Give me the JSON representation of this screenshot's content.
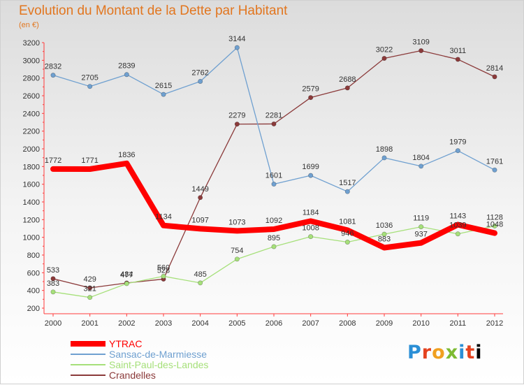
{
  "title": "Evolution du Montant de la Dette par Habitant",
  "subtitle": "(en €)",
  "logo": [
    "P",
    "r",
    "o",
    "x",
    "i",
    "t",
    "i"
  ],
  "chart_data": {
    "type": "line",
    "x": [
      "2000",
      "2001",
      "2002",
      "2003",
      "2004",
      "2005",
      "2006",
      "2007",
      "2008",
      "2009",
      "2010",
      "2011",
      "2012"
    ],
    "ylim": [
      200,
      3200
    ],
    "yticks": [
      200,
      400,
      600,
      800,
      1000,
      1200,
      1400,
      1600,
      1800,
      2000,
      2200,
      2400,
      2600,
      2800,
      3000,
      3200
    ],
    "grid": false,
    "legend_position": "bottom-left",
    "series": [
      {
        "name": "YTRAC",
        "color": "#ff0000",
        "values": [
          1772,
          1771,
          1836,
          1134,
          1097,
          1073,
          1092,
          1184,
          1081,
          883,
          937,
          1143,
          1048
        ]
      },
      {
        "name": "Sansac-de-Marmiesse",
        "color": "#6fa0d0",
        "values": [
          2832,
          2705,
          2839,
          2615,
          2762,
          3144,
          1601,
          1699,
          1517,
          1898,
          1804,
          1979,
          1761
        ]
      },
      {
        "name": "Saint-Paul-des-Landes",
        "color": "#a6e07a",
        "values": [
          383,
          321,
          477,
          560,
          485,
          754,
          895,
          1008,
          946,
          1036,
          1119,
          1039,
          1128
        ]
      },
      {
        "name": "Crandelles",
        "color": "#8b3a3a",
        "values": [
          533,
          429,
          484,
          528,
          1449,
          2279,
          2281,
          2579,
          2688,
          3022,
          3109,
          3011,
          2814
        ]
      }
    ]
  }
}
